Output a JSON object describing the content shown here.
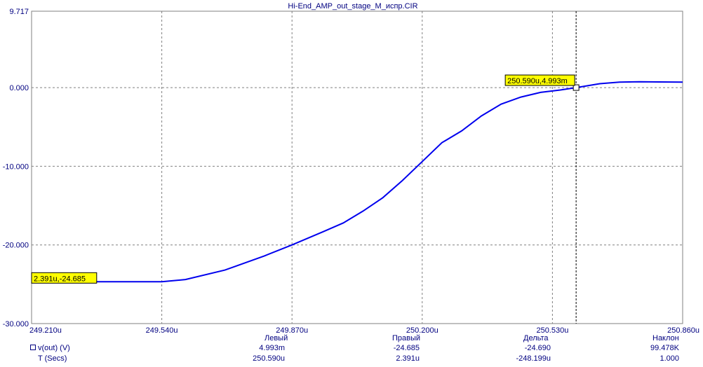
{
  "chart_data": {
    "type": "line",
    "title": "Hi-End_AMP_out_stage_M_испр.CIR",
    "xlabel": "T (Secs)",
    "ylabel": "v(out) (V)",
    "xlim": [
      249.21,
      250.86
    ],
    "ylim": [
      -30.0,
      9.717
    ],
    "x_unit": "u",
    "x_ticks": [
      "249.210u",
      "249.540u",
      "249.870u",
      "250.200u",
      "250.530u",
      "250.860u"
    ],
    "y_ticks": [
      "9.717",
      "0.000",
      "-10.000",
      "-20.000",
      "-30.000"
    ],
    "x_tick_values": [
      249.21,
      249.54,
      249.87,
      250.2,
      250.53,
      250.86
    ],
    "y_tick_values": [
      9.717,
      0.0,
      -10.0,
      -20.0,
      -30.0
    ],
    "grid": true,
    "series": [
      {
        "name": "v(out)",
        "color": "#0000ee",
        "x": [
          249.21,
          249.3,
          249.4,
          249.54,
          249.6,
          249.7,
          249.8,
          249.87,
          249.95,
          250.0,
          250.05,
          250.1,
          250.15,
          250.2,
          250.25,
          250.3,
          250.35,
          250.4,
          250.45,
          250.5,
          250.55,
          250.59,
          250.65,
          250.7,
          250.75,
          250.8,
          250.86
        ],
        "y": [
          -24.685,
          -24.685,
          -24.685,
          -24.685,
          -24.4,
          -23.2,
          -21.4,
          -20.0,
          -18.3,
          -17.2,
          -15.7,
          -14.0,
          -11.8,
          -9.4,
          -7.0,
          -5.5,
          -3.6,
          -2.1,
          -1.2,
          -0.6,
          -0.3,
          0.004993,
          0.5,
          0.7,
          0.75,
          0.72,
          0.7
        ]
      }
    ],
    "annotations": [
      {
        "text": "2.391u,-24.685",
        "x": 249.21,
        "y": -24.685
      },
      {
        "text": "250.590u,4.993m",
        "x": 250.59,
        "y": 0.004993
      }
    ],
    "cursor_x": 250.59
  },
  "readout": {
    "headers": {
      "left": "Левый",
      "right": "Правый",
      "delta": "Дельта",
      "slope": "Наклон"
    },
    "rows": [
      {
        "label": "v(out) (V)",
        "left": "4.993m",
        "right": "-24.685",
        "delta": "-24.690",
        "slope": "99.478K"
      },
      {
        "label": "T (Secs)",
        "left": "250.590u",
        "right": "2.391u",
        "delta": "-248.199u",
        "slope": "1.000"
      }
    ]
  }
}
